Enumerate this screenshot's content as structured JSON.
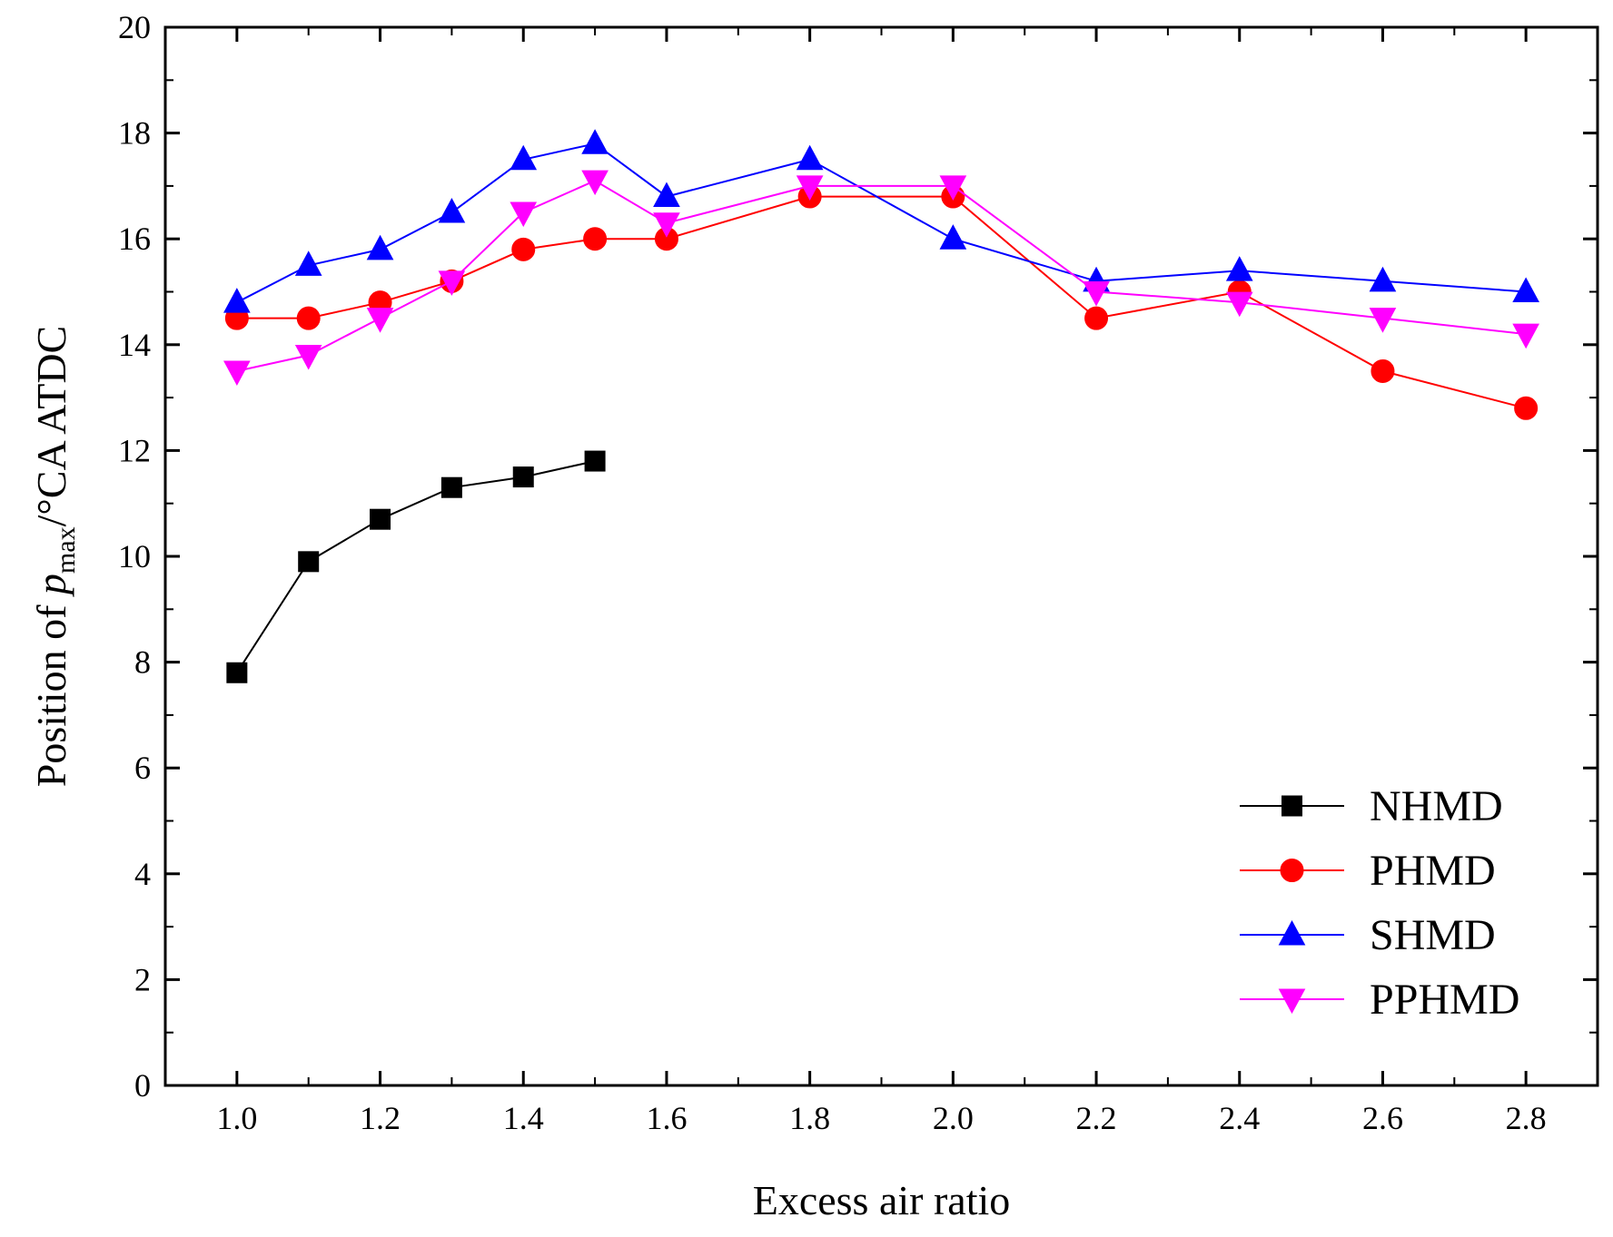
{
  "chart_data": {
    "type": "line",
    "title": "",
    "xlabel": "Excess air ratio",
    "ylabel": {
      "prefix": "Position of ",
      "symbol": "p",
      "subscript": "max",
      "suffix": "/°CA ATDC"
    },
    "xlim": [
      0.9,
      2.9
    ],
    "ylim": [
      0,
      20
    ],
    "x_ticks": [
      "1.0",
      "1.2",
      "1.4",
      "1.6",
      "1.8",
      "2.0",
      "2.2",
      "2.4",
      "2.6",
      "2.8"
    ],
    "y_ticks": [
      "0",
      "2",
      "4",
      "6",
      "8",
      "10",
      "12",
      "14",
      "16",
      "18",
      "20"
    ],
    "grid": false,
    "legend_position": "bottom-right",
    "series": [
      {
        "name": "NHMD",
        "color": "#000000",
        "marker": "square",
        "x": [
          1.0,
          1.1,
          1.2,
          1.3,
          1.4,
          1.5
        ],
        "values": [
          7.8,
          9.9,
          10.7,
          11.3,
          11.5,
          11.8
        ]
      },
      {
        "name": "PHMD",
        "color": "#ff0000",
        "marker": "circle",
        "x": [
          1.0,
          1.1,
          1.2,
          1.3,
          1.4,
          1.5,
          1.6,
          1.8,
          2.0,
          2.2,
          2.4,
          2.6,
          2.8
        ],
        "values": [
          14.5,
          14.5,
          14.8,
          15.2,
          15.8,
          16.0,
          16.0,
          16.8,
          16.8,
          14.5,
          15.0,
          13.5,
          12.8
        ]
      },
      {
        "name": "SHMD",
        "color": "#0000ff",
        "marker": "triangle-up",
        "x": [
          1.0,
          1.1,
          1.2,
          1.3,
          1.4,
          1.5,
          1.6,
          1.8,
          2.0,
          2.2,
          2.4,
          2.6,
          2.8
        ],
        "values": [
          14.8,
          15.5,
          15.8,
          16.5,
          17.5,
          17.8,
          16.8,
          17.5,
          16.0,
          15.2,
          15.4,
          15.2,
          15.0
        ]
      },
      {
        "name": "PPHMD",
        "color": "#ff00ff",
        "marker": "triangle-down",
        "x": [
          1.0,
          1.1,
          1.2,
          1.3,
          1.4,
          1.5,
          1.6,
          1.8,
          2.0,
          2.2,
          2.4,
          2.6,
          2.8
        ],
        "values": [
          13.5,
          13.8,
          14.5,
          15.2,
          16.5,
          17.1,
          16.3,
          17.0,
          17.0,
          15.0,
          14.8,
          14.5,
          14.2
        ]
      }
    ]
  }
}
